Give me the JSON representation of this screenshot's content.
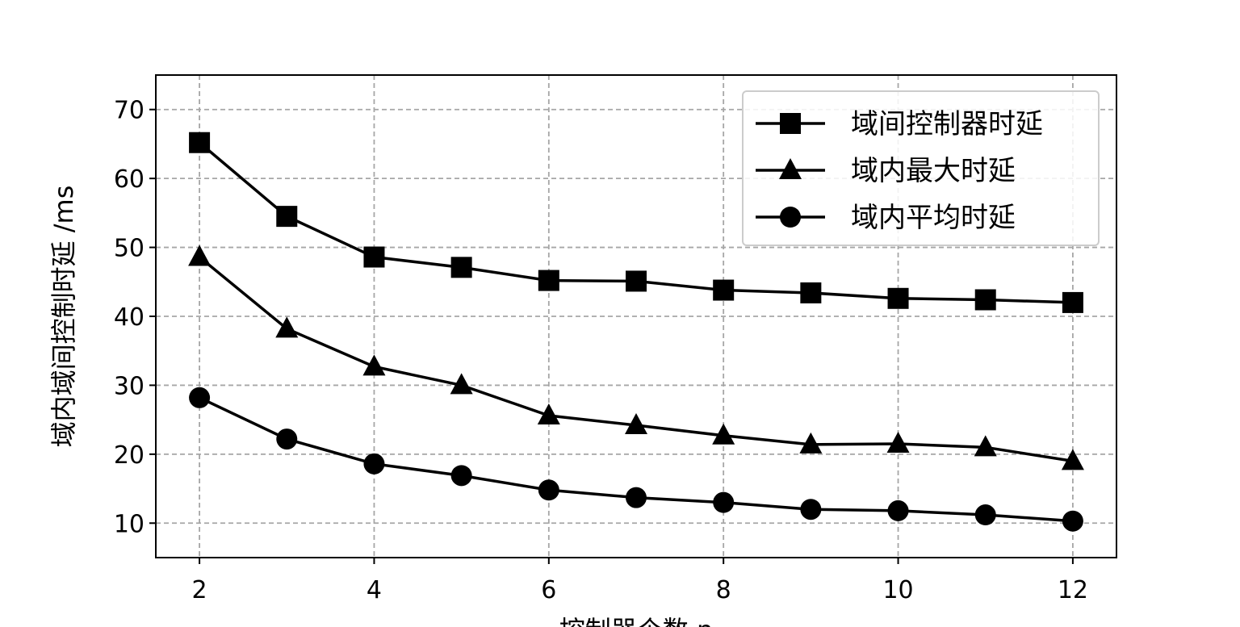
{
  "chart_data": {
    "type": "line",
    "title": "",
    "xlabel": "控制器个数 n",
    "ylabel": "域内域间控制时延 /ms",
    "xlim": [
      1.5,
      12.5
    ],
    "ylim": [
      5,
      75
    ],
    "x_ticks": [
      2,
      4,
      6,
      8,
      10,
      12
    ],
    "y_ticks": [
      10,
      20,
      30,
      40,
      50,
      60,
      70
    ],
    "grid": true,
    "legend_position": "top-right",
    "x": [
      2,
      3,
      4,
      5,
      6,
      7,
      8,
      9,
      10,
      11,
      12
    ],
    "series": [
      {
        "name": "域间控制器时延",
        "marker": "square",
        "color": "#000000",
        "values": [
          65.2,
          54.5,
          48.6,
          47.1,
          45.2,
          45.1,
          43.8,
          43.4,
          42.6,
          42.4,
          42.0
        ]
      },
      {
        "name": "域内最大时延",
        "marker": "triangle",
        "color": "#000000",
        "values": [
          48.6,
          38.2,
          32.7,
          30.0,
          25.6,
          24.2,
          22.7,
          21.4,
          21.5,
          21.0,
          19.0
        ]
      },
      {
        "name": "域内平均时延",
        "marker": "circle",
        "color": "#000000",
        "values": [
          28.2,
          22.2,
          18.6,
          16.9,
          14.8,
          13.7,
          13.0,
          12.0,
          11.8,
          11.2,
          10.3
        ]
      }
    ]
  }
}
